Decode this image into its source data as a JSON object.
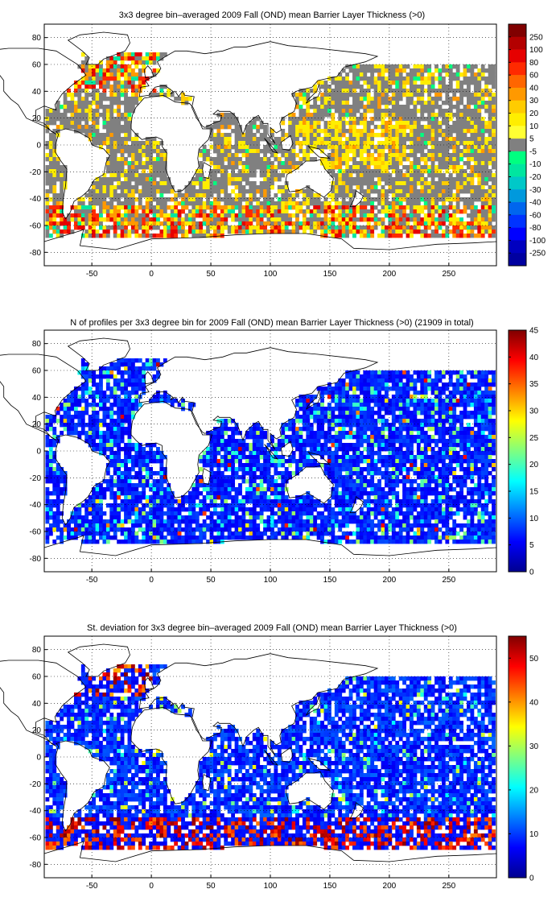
{
  "chart_data": [
    {
      "type": "heatmap",
      "title": "3x3 degree bin–averaged 2009 Fall (OND) mean Barrier Layer Thickness (>0)",
      "x_ticks": [
        -50,
        0,
        50,
        100,
        150,
        200,
        250
      ],
      "y_ticks": [
        -80,
        -60,
        -40,
        -20,
        0,
        20,
        40,
        60,
        80
      ],
      "x_range": [
        -90,
        290
      ],
      "y_range": [
        -90,
        90
      ],
      "grid": true,
      "colorbar": {
        "labels": [
          "250",
          "100",
          "80",
          "60",
          "40",
          "30",
          "20",
          "10",
          "5",
          "-5",
          "-10",
          "-20",
          "-30",
          "-40",
          "-60",
          "-80",
          "-100",
          "-250"
        ],
        "colors": [
          "#800000",
          "#b30000",
          "#e60000",
          "#ff2a00",
          "#ff6600",
          "#ff9900",
          "#ffcc00",
          "#ffee00",
          "#ffff33",
          "#808080",
          "#00ff80",
          "#00e6a0",
          "#00c8c8",
          "#0099dd",
          "#0066ee",
          "#0033ff",
          "#0000ff",
          "#0000c0",
          "#0000a0"
        ]
      }
    },
    {
      "type": "heatmap",
      "title": "N of profiles per 3x3 degree bin for 2009 Fall (OND) mean Barrier Layer Thickness (>0) (21909 in total)",
      "x_ticks": [
        -50,
        0,
        50,
        100,
        150,
        200,
        250
      ],
      "y_ticks": [
        -80,
        -60,
        -40,
        -20,
        0,
        20,
        40,
        60,
        80
      ],
      "x_range": [
        -90,
        290
      ],
      "y_range": [
        -90,
        90
      ],
      "grid": true,
      "colorbar": {
        "ticks": [
          "0",
          "5",
          "10",
          "15",
          "20",
          "25",
          "30",
          "35",
          "40",
          "45"
        ],
        "range": [
          0,
          45
        ],
        "colormap": "jet"
      }
    },
    {
      "type": "heatmap",
      "title": "St. deviation for 3x3 degree bin–averaged 2009 Fall (OND) mean Barrier Layer Thickness (>0)",
      "x_ticks": [
        -50,
        0,
        50,
        100,
        150,
        200,
        250
      ],
      "y_ticks": [
        -80,
        -60,
        -40,
        -20,
        0,
        20,
        40,
        60,
        80
      ],
      "x_range": [
        -90,
        290
      ],
      "y_range": [
        -90,
        90
      ],
      "grid": true,
      "colorbar": {
        "ticks": [
          "0",
          "10",
          "20",
          "30",
          "40",
          "50"
        ],
        "range": [
          0,
          55
        ],
        "colormap": "jet"
      }
    }
  ]
}
